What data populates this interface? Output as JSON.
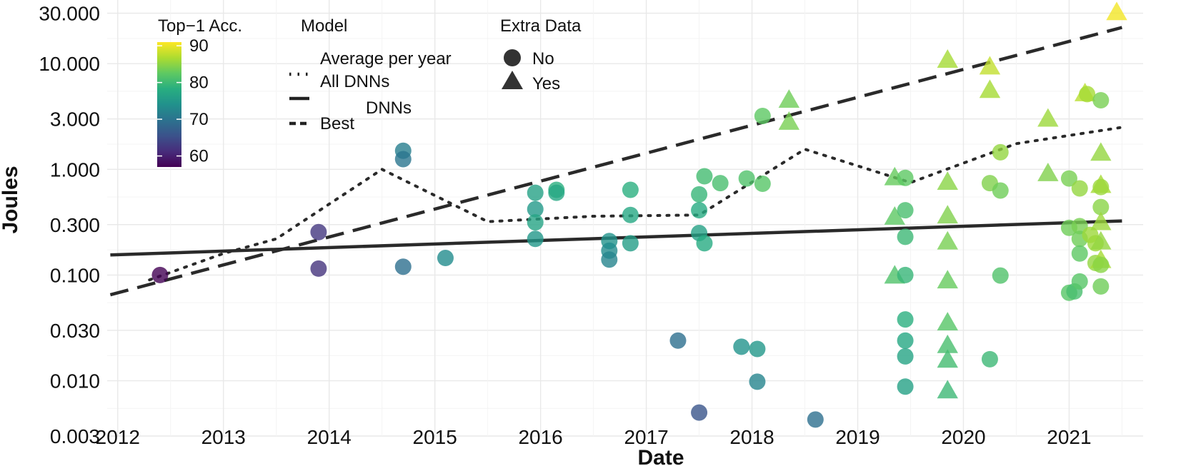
{
  "chart_data": {
    "type": "scatter",
    "xlabel": "Date",
    "ylabel": "Joules",
    "x_scale": "time",
    "y_scale": "log",
    "xlim": [
      2011.9,
      2021.7
    ],
    "ylim": [
      0.003,
      40
    ],
    "x_ticks": [
      {
        "value": 2012,
        "label": "2012"
      },
      {
        "value": 2013,
        "label": "2013"
      },
      {
        "value": 2014,
        "label": "2014"
      },
      {
        "value": 2015,
        "label": "2015"
      },
      {
        "value": 2016,
        "label": "2016"
      },
      {
        "value": 2017,
        "label": "2017"
      },
      {
        "value": 2018,
        "label": "2018"
      },
      {
        "value": 2019,
        "label": "2019"
      },
      {
        "value": 2020,
        "label": "2020"
      },
      {
        "value": 2021,
        "label": "2021"
      }
    ],
    "y_ticks": [
      {
        "value": 0.003,
        "label": "0.003"
      },
      {
        "value": 0.01,
        "label": "0.010"
      },
      {
        "value": 0.03,
        "label": "0.030"
      },
      {
        "value": 0.1,
        "label": "0.100"
      },
      {
        "value": 0.3,
        "label": "0.300"
      },
      {
        "value": 1,
        "label": "1.000"
      },
      {
        "value": 3,
        "label": "3.000"
      },
      {
        "value": 10,
        "label": "10.000"
      },
      {
        "value": 30,
        "label": "30.000"
      }
    ],
    "grid": true,
    "legend": {
      "color": {
        "title": "Top−1 Acc.",
        "min": 57,
        "max": 91,
        "ticks": [
          {
            "value": 90,
            "label": "90"
          },
          {
            "value": 80,
            "label": "80"
          },
          {
            "value": 70,
            "label": "70"
          },
          {
            "value": 60,
            "label": "60"
          }
        ]
      },
      "model": {
        "title": "Model",
        "items": [
          {
            "label": "Average per year",
            "style": "dotted"
          },
          {
            "label": "All DNNs",
            "style": "solid"
          },
          {
            "label": "DNNs",
            "style": "solid"
          },
          {
            "label": "Best",
            "style": "dashed"
          }
        ]
      },
      "extra_data": {
        "title": "Extra Data",
        "items": [
          {
            "label": "No",
            "shape": "circle"
          },
          {
            "label": "Yes",
            "shape": "triangle"
          }
        ]
      }
    },
    "lines": [
      {
        "style": "solid",
        "points": [
          [
            2011.93,
            0.155
          ],
          [
            2021.5,
            0.325
          ]
        ]
      },
      {
        "style": "dashed",
        "points": [
          [
            2011.93,
            0.065
          ],
          [
            2021.5,
            22
          ]
        ]
      },
      {
        "style": "dotted",
        "points": [
          [
            2012.3,
            0.09
          ],
          [
            2013.0,
            0.16
          ],
          [
            2013.5,
            0.22
          ],
          [
            2014.5,
            1.0
          ],
          [
            2015.5,
            0.32
          ],
          [
            2016.5,
            0.36
          ],
          [
            2017.5,
            0.37
          ],
          [
            2018.5,
            1.55
          ],
          [
            2019.5,
            0.75
          ],
          [
            2020.5,
            1.75
          ],
          [
            2021.5,
            2.5
          ]
        ]
      }
    ],
    "points": [
      {
        "x": 2012.4,
        "y": 0.1,
        "acc": 57.1,
        "extra": "No"
      },
      {
        "x": 2013.9,
        "y": 0.255,
        "acc": 62.5,
        "extra": "No"
      },
      {
        "x": 2013.9,
        "y": 0.115,
        "acc": 62.0,
        "extra": "No"
      },
      {
        "x": 2014.7,
        "y": 1.5,
        "acc": 71.5,
        "extra": "No"
      },
      {
        "x": 2014.7,
        "y": 1.25,
        "acc": 70.5,
        "extra": "No"
      },
      {
        "x": 2014.7,
        "y": 0.12,
        "acc": 69.5,
        "extra": "No"
      },
      {
        "x": 2015.1,
        "y": 0.145,
        "acc": 73.5,
        "extra": "No"
      },
      {
        "x": 2015.95,
        "y": 0.6,
        "acc": 76.5,
        "extra": "No"
      },
      {
        "x": 2015.95,
        "y": 0.42,
        "acc": 75.5,
        "extra": "No"
      },
      {
        "x": 2015.95,
        "y": 0.315,
        "acc": 77.0,
        "extra": "No"
      },
      {
        "x": 2015.95,
        "y": 0.22,
        "acc": 75.0,
        "extra": "No"
      },
      {
        "x": 2016.15,
        "y": 0.64,
        "acc": 78.5,
        "extra": "No"
      },
      {
        "x": 2016.15,
        "y": 0.6,
        "acc": 77.5,
        "extra": "No"
      },
      {
        "x": 2016.65,
        "y": 0.21,
        "acc": 74.5,
        "extra": "No"
      },
      {
        "x": 2016.65,
        "y": 0.17,
        "acc": 73.5,
        "extra": "No"
      },
      {
        "x": 2016.65,
        "y": 0.14,
        "acc": 72.5,
        "extra": "No"
      },
      {
        "x": 2016.85,
        "y": 0.2,
        "acc": 76.0,
        "extra": "No"
      },
      {
        "x": 2016.85,
        "y": 0.64,
        "acc": 78.5,
        "extra": "No"
      },
      {
        "x": 2016.85,
        "y": 0.37,
        "acc": 77.5,
        "extra": "No"
      },
      {
        "x": 2017.3,
        "y": 0.024,
        "acc": 69.5,
        "extra": "No"
      },
      {
        "x": 2017.5,
        "y": 0.005,
        "acc": 66.0,
        "extra": "No"
      },
      {
        "x": 2017.5,
        "y": 0.58,
        "acc": 79.5,
        "extra": "No"
      },
      {
        "x": 2017.5,
        "y": 0.41,
        "acc": 78.0,
        "extra": "No"
      },
      {
        "x": 2017.5,
        "y": 0.25,
        "acc": 76.5,
        "extra": "No"
      },
      {
        "x": 2017.55,
        "y": 0.2,
        "acc": 78.0,
        "extra": "No"
      },
      {
        "x": 2017.55,
        "y": 0.86,
        "acc": 80.5,
        "extra": "No"
      },
      {
        "x": 2017.7,
        "y": 0.74,
        "acc": 81.0,
        "extra": "No"
      },
      {
        "x": 2017.9,
        "y": 0.021,
        "acc": 74.5,
        "extra": "No"
      },
      {
        "x": 2017.95,
        "y": 0.82,
        "acc": 81.5,
        "extra": "No"
      },
      {
        "x": 2018.05,
        "y": 0.02,
        "acc": 75.0,
        "extra": "No"
      },
      {
        "x": 2018.05,
        "y": 0.0098,
        "acc": 72.5,
        "extra": "No"
      },
      {
        "x": 2018.1,
        "y": 3.2,
        "acc": 82.5,
        "extra": "No"
      },
      {
        "x": 2018.1,
        "y": 0.73,
        "acc": 82.0,
        "extra": "No"
      },
      {
        "x": 2018.35,
        "y": 4.6,
        "acc": 83.5,
        "extra": "Yes"
      },
      {
        "x": 2018.35,
        "y": 2.85,
        "acc": 84.0,
        "extra": "Yes"
      },
      {
        "x": 2018.6,
        "y": 0.0043,
        "acc": 69.5,
        "extra": "No"
      },
      {
        "x": 2019.35,
        "y": 0.85,
        "acc": 83.0,
        "extra": "Yes"
      },
      {
        "x": 2019.35,
        "y": 0.36,
        "acc": 82.5,
        "extra": "Yes"
      },
      {
        "x": 2019.35,
        "y": 0.1,
        "acc": 81.5,
        "extra": "Yes"
      },
      {
        "x": 2019.45,
        "y": 0.83,
        "acc": 82.5,
        "extra": "No"
      },
      {
        "x": 2019.45,
        "y": 0.41,
        "acc": 81.0,
        "extra": "No"
      },
      {
        "x": 2019.45,
        "y": 0.23,
        "acc": 80.0,
        "extra": "No"
      },
      {
        "x": 2019.45,
        "y": 0.1,
        "acc": 79.5,
        "extra": "No"
      },
      {
        "x": 2019.45,
        "y": 0.038,
        "acc": 78.5,
        "extra": "No"
      },
      {
        "x": 2019.45,
        "y": 0.024,
        "acc": 77.5,
        "extra": "No"
      },
      {
        "x": 2019.45,
        "y": 0.017,
        "acc": 77.0,
        "extra": "No"
      },
      {
        "x": 2019.45,
        "y": 0.0088,
        "acc": 76.5,
        "extra": "No"
      },
      {
        "x": 2019.85,
        "y": 11.0,
        "acc": 86.5,
        "extra": "Yes"
      },
      {
        "x": 2019.85,
        "y": 0.77,
        "acc": 85.0,
        "extra": "Yes"
      },
      {
        "x": 2019.85,
        "y": 0.37,
        "acc": 84.5,
        "extra": "Yes"
      },
      {
        "x": 2019.85,
        "y": 0.21,
        "acc": 84.0,
        "extra": "Yes"
      },
      {
        "x": 2019.85,
        "y": 0.09,
        "acc": 83.0,
        "extra": "Yes"
      },
      {
        "x": 2019.85,
        "y": 0.036,
        "acc": 82.0,
        "extra": "Yes"
      },
      {
        "x": 2019.85,
        "y": 0.022,
        "acc": 81.0,
        "extra": "Yes"
      },
      {
        "x": 2019.85,
        "y": 0.016,
        "acc": 80.5,
        "extra": "Yes"
      },
      {
        "x": 2019.85,
        "y": 0.0082,
        "acc": 80.0,
        "extra": "Yes"
      },
      {
        "x": 2020.25,
        "y": 9.5,
        "acc": 88.0,
        "extra": "Yes"
      },
      {
        "x": 2020.25,
        "y": 5.7,
        "acc": 86.5,
        "extra": "Yes"
      },
      {
        "x": 2020.25,
        "y": 0.74,
        "acc": 84.5,
        "extra": "No"
      },
      {
        "x": 2020.25,
        "y": 0.016,
        "acc": 80.0,
        "extra": "No"
      },
      {
        "x": 2020.35,
        "y": 1.45,
        "acc": 85.5,
        "extra": "No"
      },
      {
        "x": 2020.35,
        "y": 0.63,
        "acc": 83.5,
        "extra": "No"
      },
      {
        "x": 2020.35,
        "y": 0.099,
        "acc": 81.5,
        "extra": "No"
      },
      {
        "x": 2020.8,
        "y": 3.05,
        "acc": 86.0,
        "extra": "Yes"
      },
      {
        "x": 2020.8,
        "y": 0.93,
        "acc": 84.5,
        "extra": "Yes"
      },
      {
        "x": 2021.0,
        "y": 0.82,
        "acc": 84.0,
        "extra": "No"
      },
      {
        "x": 2021.0,
        "y": 0.28,
        "acc": 83.5,
        "extra": "No"
      },
      {
        "x": 2021.0,
        "y": 0.068,
        "acc": 82.0,
        "extra": "No"
      },
      {
        "x": 2021.05,
        "y": 0.07,
        "acc": 81.0,
        "extra": "No"
      },
      {
        "x": 2021.1,
        "y": 0.66,
        "acc": 85.5,
        "extra": "No"
      },
      {
        "x": 2021.1,
        "y": 0.29,
        "acc": 84.0,
        "extra": "No"
      },
      {
        "x": 2021.1,
        "y": 0.22,
        "acc": 83.5,
        "extra": "No"
      },
      {
        "x": 2021.1,
        "y": 0.16,
        "acc": 82.5,
        "extra": "No"
      },
      {
        "x": 2021.1,
        "y": 0.087,
        "acc": 82.0,
        "extra": "No"
      },
      {
        "x": 2021.15,
        "y": 5.3,
        "acc": 87.5,
        "extra": "Yes"
      },
      {
        "x": 2021.17,
        "y": 5.15,
        "acc": 86.5,
        "extra": "No"
      },
      {
        "x": 2021.2,
        "y": 0.24,
        "acc": 86.0,
        "extra": "No"
      },
      {
        "x": 2021.25,
        "y": 0.2,
        "acc": 86.0,
        "extra": "No"
      },
      {
        "x": 2021.25,
        "y": 0.13,
        "acc": 85.5,
        "extra": "No"
      },
      {
        "x": 2021.3,
        "y": 4.5,
        "acc": 84.0,
        "extra": "No"
      },
      {
        "x": 2021.3,
        "y": 1.45,
        "acc": 85.5,
        "extra": "Yes"
      },
      {
        "x": 2021.3,
        "y": 0.72,
        "acc": 86.5,
        "extra": "Yes"
      },
      {
        "x": 2021.3,
        "y": 0.68,
        "acc": 86.0,
        "extra": "No"
      },
      {
        "x": 2021.3,
        "y": 0.44,
        "acc": 85.0,
        "extra": "No"
      },
      {
        "x": 2021.3,
        "y": 0.32,
        "acc": 86.0,
        "extra": "Yes"
      },
      {
        "x": 2021.3,
        "y": 0.21,
        "acc": 85.5,
        "extra": "Yes"
      },
      {
        "x": 2021.3,
        "y": 0.14,
        "acc": 86.5,
        "extra": "Yes"
      },
      {
        "x": 2021.3,
        "y": 0.125,
        "acc": 85.0,
        "extra": "No"
      },
      {
        "x": 2021.3,
        "y": 0.078,
        "acc": 83.5,
        "extra": "No"
      },
      {
        "x": 2021.45,
        "y": 31.0,
        "acc": 90.5,
        "extra": "Yes"
      }
    ]
  }
}
